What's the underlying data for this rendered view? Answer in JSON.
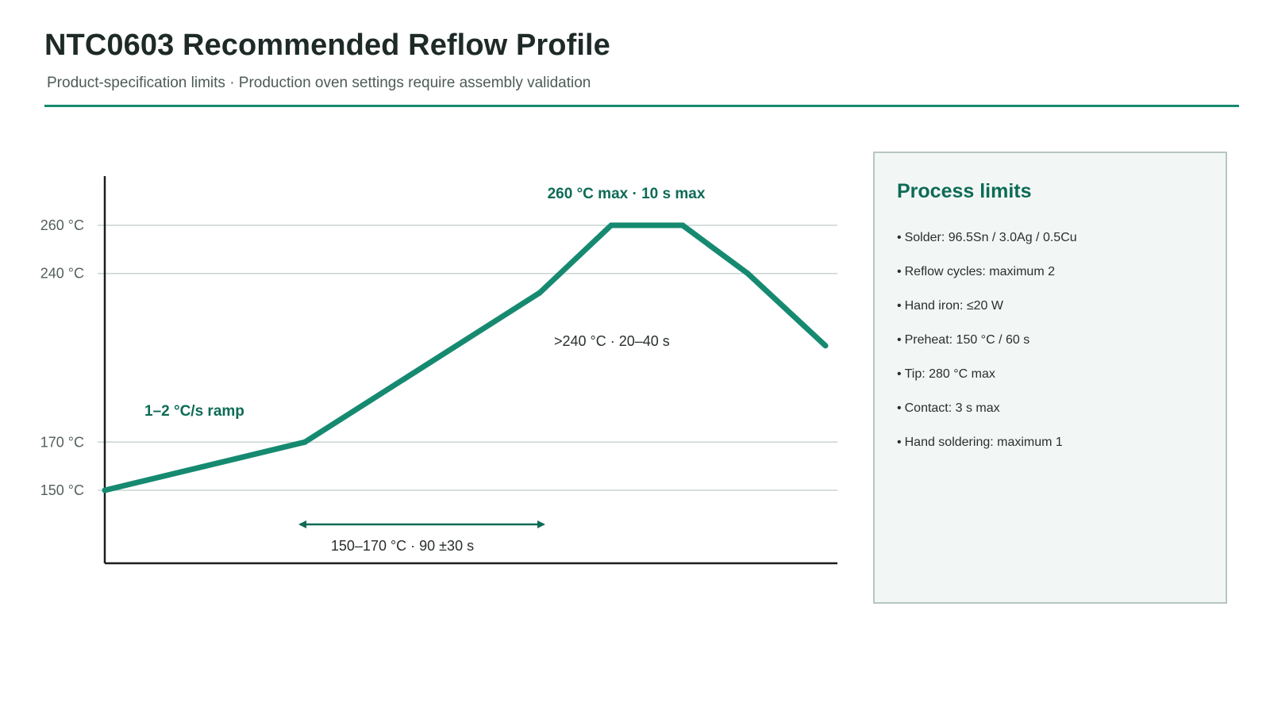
{
  "header": {
    "title": "NTC0603 Recommended Reflow Profile",
    "subtitle": "Product-specification limits · Production oven settings require assembly validation"
  },
  "chart_data": {
    "type": "line",
    "title": "",
    "xlabel": "",
    "ylabel": "",
    "y_unit": "°C",
    "ylim": [
      142,
      280
    ],
    "grid": true,
    "y_ticks": [
      {
        "value": 150,
        "label": "150 °C"
      },
      {
        "value": 170,
        "label": "170 °C"
      },
      {
        "value": 240,
        "label": "240 °C"
      },
      {
        "value": 260,
        "label": "260 °C"
      }
    ],
    "series": [
      {
        "values": [
          150,
          170,
          232,
          260,
          260,
          240,
          210
        ]
      }
    ],
    "annotations": {
      "ramp": "1–2 °C/s ramp",
      "peak": "260 °C max · 10 s max",
      "above_liquidus": ">240 °C · 20–40 s",
      "soak": "150–170 °C · 90 ±30 s"
    },
    "colors": {
      "line": "#168a70",
      "axis": "#1a1f1e",
      "grid": "#c7d6d2",
      "annotation": "#0d6b56"
    }
  },
  "panel": {
    "title": "Process limits",
    "items": [
      "Solder: 96.5Sn / 3.0Ag / 0.5Cu",
      "Reflow cycles: maximum 2",
      "Hand iron: ≤20 W",
      "Preheat: 150 °C / 60 s",
      "Tip: 280 °C max",
      "Contact: 3 s max",
      "Hand soldering: maximum 1"
    ]
  }
}
